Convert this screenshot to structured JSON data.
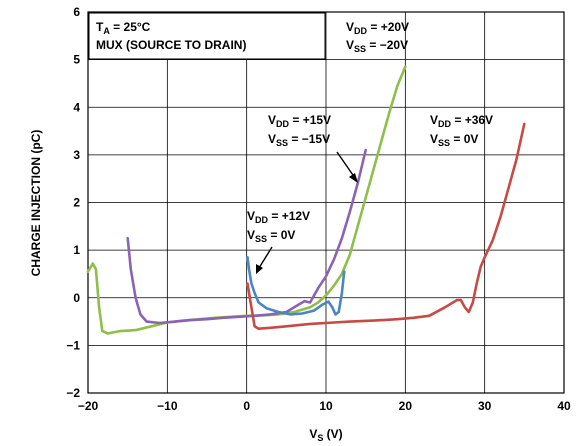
{
  "chart_data": {
    "type": "line",
    "xlabel": "V",
    "xlabel_sub": "S",
    "xlabel_unit": " (V)",
    "ylabel": "CHARGE INJECTION (pC)",
    "xlim": [
      -20,
      40
    ],
    "ylim": [
      -2,
      6
    ],
    "xticks": [
      -20,
      -10,
      0,
      10,
      20,
      30,
      40
    ],
    "yticks": [
      -2,
      -1,
      0,
      1,
      2,
      3,
      4,
      5,
      6
    ],
    "xtick_labels": [
      "−20",
      "−10",
      "0",
      "10",
      "20",
      "30",
      "40"
    ],
    "ytick_labels": [
      "−2",
      "−1",
      "0",
      "1",
      "2",
      "3",
      "4",
      "5",
      "6"
    ],
    "grid": true,
    "legend": "none",
    "condition_box": {
      "line1_main": "T",
      "line1_sub": "A",
      "line1_rest": " = 25°C",
      "line2": "MUX (SOURCE TO DRAIN)"
    },
    "series": [
      {
        "color": "#8fbe4a",
        "label": {
          "vdd_main": "V",
          "vdd_sub": "DD",
          "vdd_val": " = +20V",
          "vss_main": "V",
          "vss_sub": "SS",
          "vss_val": " = −20V"
        },
        "points": [
          [
            -20,
            0.55
          ],
          [
            -19.4,
            0.72
          ],
          [
            -19,
            0.6
          ],
          [
            -18.6,
            -0.2
          ],
          [
            -18.2,
            -0.7
          ],
          [
            -17.5,
            -0.75
          ],
          [
            -16,
            -0.7
          ],
          [
            -14,
            -0.68
          ],
          [
            -12,
            -0.6
          ],
          [
            -10,
            -0.52
          ],
          [
            -8,
            -0.48
          ],
          [
            -6,
            -0.45
          ],
          [
            -4,
            -0.42
          ],
          [
            -2,
            -0.4
          ],
          [
            0,
            -0.38
          ],
          [
            2,
            -0.37
          ],
          [
            4,
            -0.35
          ],
          [
            6,
            -0.3
          ],
          [
            8,
            -0.2
          ],
          [
            9,
            -0.1
          ],
          [
            10,
            0.05
          ],
          [
            11,
            0.25
          ],
          [
            12,
            0.5
          ],
          [
            13,
            0.9
          ],
          [
            14,
            1.5
          ],
          [
            15,
            2.1
          ],
          [
            16,
            2.7
          ],
          [
            17,
            3.3
          ],
          [
            18,
            3.9
          ],
          [
            19,
            4.45
          ],
          [
            20,
            4.85
          ]
        ]
      },
      {
        "color": "#8b63b3",
        "label": {
          "vdd_main": "V",
          "vdd_sub": "DD",
          "vdd_val": " = +15V",
          "vss_main": "V",
          "vss_sub": "SS",
          "vss_val": " = −15V"
        },
        "points": [
          [
            -15,
            1.25
          ],
          [
            -14.6,
            0.6
          ],
          [
            -14,
            0.0
          ],
          [
            -13.4,
            -0.35
          ],
          [
            -12.6,
            -0.5
          ],
          [
            -11,
            -0.53
          ],
          [
            -9,
            -0.5
          ],
          [
            -7,
            -0.47
          ],
          [
            -5,
            -0.45
          ],
          [
            -3,
            -0.42
          ],
          [
            -1,
            -0.4
          ],
          [
            1,
            -0.38
          ],
          [
            3,
            -0.35
          ],
          [
            5,
            -0.3
          ],
          [
            6.5,
            -0.15
          ],
          [
            7.3,
            -0.07
          ],
          [
            8,
            -0.1
          ],
          [
            8.5,
            0.05
          ],
          [
            9,
            0.2
          ],
          [
            10,
            0.45
          ],
          [
            11,
            0.8
          ],
          [
            12,
            1.25
          ],
          [
            13,
            1.8
          ],
          [
            14,
            2.4
          ],
          [
            15,
            3.1
          ]
        ]
      },
      {
        "color": "#4a86c5",
        "label": {
          "vdd_main": "V",
          "vdd_sub": "DD",
          "vdd_val": " = +12V",
          "vss_main": "V",
          "vss_sub": "SS",
          "vss_val": " = 0V"
        },
        "points": [
          [
            0.1,
            0.85
          ],
          [
            0.3,
            0.6
          ],
          [
            0.6,
            0.3
          ],
          [
            1,
            0.1
          ],
          [
            1.5,
            -0.1
          ],
          [
            2.5,
            -0.22
          ],
          [
            4,
            -0.3
          ],
          [
            5.5,
            -0.35
          ],
          [
            7,
            -0.33
          ],
          [
            8.5,
            -0.27
          ],
          [
            9.5,
            -0.15
          ],
          [
            10.3,
            -0.08
          ],
          [
            10.8,
            -0.2
          ],
          [
            11.2,
            -0.35
          ],
          [
            11.6,
            -0.3
          ],
          [
            12,
            0.1
          ],
          [
            12.3,
            0.55
          ]
        ]
      },
      {
        "color": "#c54b44",
        "label": {
          "vdd_main": "V",
          "vdd_sub": "DD",
          "vdd_val": " = +36V",
          "vss_main": "V",
          "vss_sub": "SS",
          "vss_val": " = 0V"
        },
        "points": [
          [
            0.1,
            0.3
          ],
          [
            0.5,
            -0.1
          ],
          [
            1,
            -0.6
          ],
          [
            1.5,
            -0.65
          ],
          [
            3,
            -0.63
          ],
          [
            5,
            -0.6
          ],
          [
            8,
            -0.55
          ],
          [
            11,
            -0.52
          ],
          [
            13,
            -0.5
          ],
          [
            16,
            -0.48
          ],
          [
            19,
            -0.45
          ],
          [
            21,
            -0.42
          ],
          [
            23,
            -0.38
          ],
          [
            25,
            -0.2
          ],
          [
            26.5,
            -0.05
          ],
          [
            27,
            -0.05
          ],
          [
            27.5,
            -0.2
          ],
          [
            28,
            -0.3
          ],
          [
            28.5,
            -0.1
          ],
          [
            29,
            0.3
          ],
          [
            29.5,
            0.65
          ],
          [
            30,
            0.85
          ],
          [
            31,
            1.2
          ],
          [
            32,
            1.7
          ],
          [
            33,
            2.3
          ],
          [
            34,
            2.9
          ],
          [
            35,
            3.65
          ]
        ]
      }
    ]
  }
}
